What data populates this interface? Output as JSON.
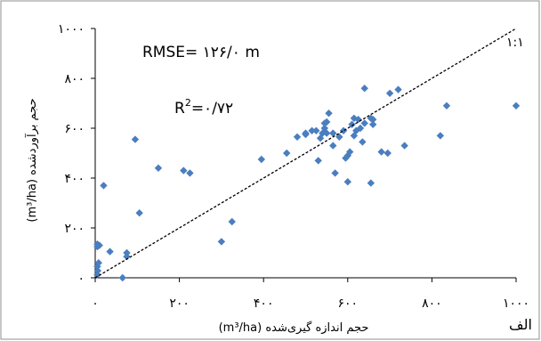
{
  "chart_data": {
    "type": "scatter",
    "xlabel": "حجم اندازه گیری‌شده (m³/ha)",
    "ylabel": "حجم برآوردشده (m³/ha)",
    "x_ticks": [
      "۰",
      "۲۰۰",
      "۴۰۰",
      "۶۰۰",
      "۸۰۰",
      "۱۰۰۰"
    ],
    "y_ticks": [
      "۰",
      "۲۰۰",
      "۴۰۰",
      "۶۰۰",
      "۸۰۰",
      "۱۰۰۰"
    ],
    "xlim": [
      0,
      1000
    ],
    "ylim": [
      0,
      1000
    ],
    "grid": false,
    "annotations": {
      "rmse": "RMSE= ۱۲۶/۰ m",
      "r2_prefix": "R",
      "r2_sup": "2",
      "r2_value": "=۰/۷۲",
      "line_label": "۱:۱",
      "panel_label": "الف"
    },
    "reference_line": {
      "name": "۱:۱",
      "from": [
        0,
        0
      ],
      "to": [
        1000,
        1000
      ]
    },
    "marker_color": "#4a7ebf",
    "points": [
      [
        5,
        12
      ],
      [
        6,
        28
      ],
      [
        5,
        45
      ],
      [
        8,
        60
      ],
      [
        5,
        125
      ],
      [
        10,
        130
      ],
      [
        5,
        135
      ],
      [
        20,
        370
      ],
      [
        35,
        105
      ],
      [
        65,
        0
      ],
      [
        75,
        100
      ],
      [
        75,
        85
      ],
      [
        95,
        555
      ],
      [
        105,
        260
      ],
      [
        150,
        440
      ],
      [
        210,
        430
      ],
      [
        225,
        420
      ],
      [
        300,
        145
      ],
      [
        325,
        225
      ],
      [
        395,
        475
      ],
      [
        455,
        500
      ],
      [
        480,
        565
      ],
      [
        500,
        575
      ],
      [
        500,
        580
      ],
      [
        515,
        590
      ],
      [
        525,
        590
      ],
      [
        530,
        470
      ],
      [
        535,
        560
      ],
      [
        540,
        580
      ],
      [
        545,
        620
      ],
      [
        545,
        600
      ],
      [
        550,
        625
      ],
      [
        550,
        580
      ],
      [
        555,
        660
      ],
      [
        565,
        580
      ],
      [
        565,
        530
      ],
      [
        570,
        420
      ],
      [
        580,
        565
      ],
      [
        590,
        590
      ],
      [
        595,
        480
      ],
      [
        600,
        490
      ],
      [
        600,
        385
      ],
      [
        605,
        505
      ],
      [
        610,
        615
      ],
      [
        615,
        570
      ],
      [
        615,
        640
      ],
      [
        620,
        590
      ],
      [
        625,
        635
      ],
      [
        630,
        600
      ],
      [
        635,
        545
      ],
      [
        640,
        620
      ],
      [
        640,
        760
      ],
      [
        655,
        640
      ],
      [
        655,
        380
      ],
      [
        660,
        615
      ],
      [
        660,
        635
      ],
      [
        680,
        505
      ],
      [
        695,
        500
      ],
      [
        700,
        740
      ],
      [
        720,
        755
      ],
      [
        735,
        530
      ],
      [
        820,
        570
      ],
      [
        835,
        690
      ],
      [
        1000,
        690
      ]
    ]
  }
}
